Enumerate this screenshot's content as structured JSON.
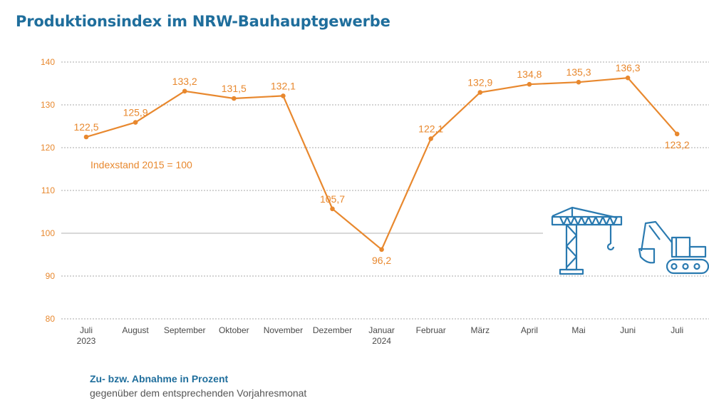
{
  "title": "Produktionsindex im NRW-Bauhauptgewerbe",
  "subtitle": {
    "heading": "Zu- bzw. Abnahme in Prozent",
    "text": "gegenüber dem entsprechenden Vorjahresmonat"
  },
  "colors": {
    "line": "#e8882e",
    "title": "#1f6e9c",
    "icons": "#2a7ab0",
    "grid": "#aaaaaa"
  },
  "icons": [
    "crane-icon",
    "excavator-icon"
  ],
  "chart_data": {
    "type": "line",
    "title": "Produktionsindex im NRW-Bauhauptgewerbe",
    "categories": [
      "Juli\n2023",
      "August",
      "September",
      "Oktober",
      "November",
      "Dezember",
      "Januar\n2024",
      "Februar",
      "März",
      "April",
      "Mai",
      "Juni",
      "Juli"
    ],
    "values": [
      122.5,
      125.9,
      133.2,
      131.5,
      132.1,
      105.7,
      96.2,
      122.1,
      132.9,
      134.8,
      135.3,
      136.3,
      123.2
    ],
    "labels": [
      "122,5",
      "125,9",
      "133,2",
      "131,5",
      "132,1",
      "105,7",
      "96,2",
      "122,1",
      "132,9",
      "134,8",
      "135,3",
      "136,3",
      "123,2"
    ],
    "yticks": [
      "80",
      "90",
      "100",
      "110",
      "120",
      "130",
      "140"
    ],
    "ylim": [
      80,
      140
    ],
    "reference_line": 100,
    "annotation": "Indexstand 2015 = 100",
    "grid": "dotted horizontal"
  }
}
